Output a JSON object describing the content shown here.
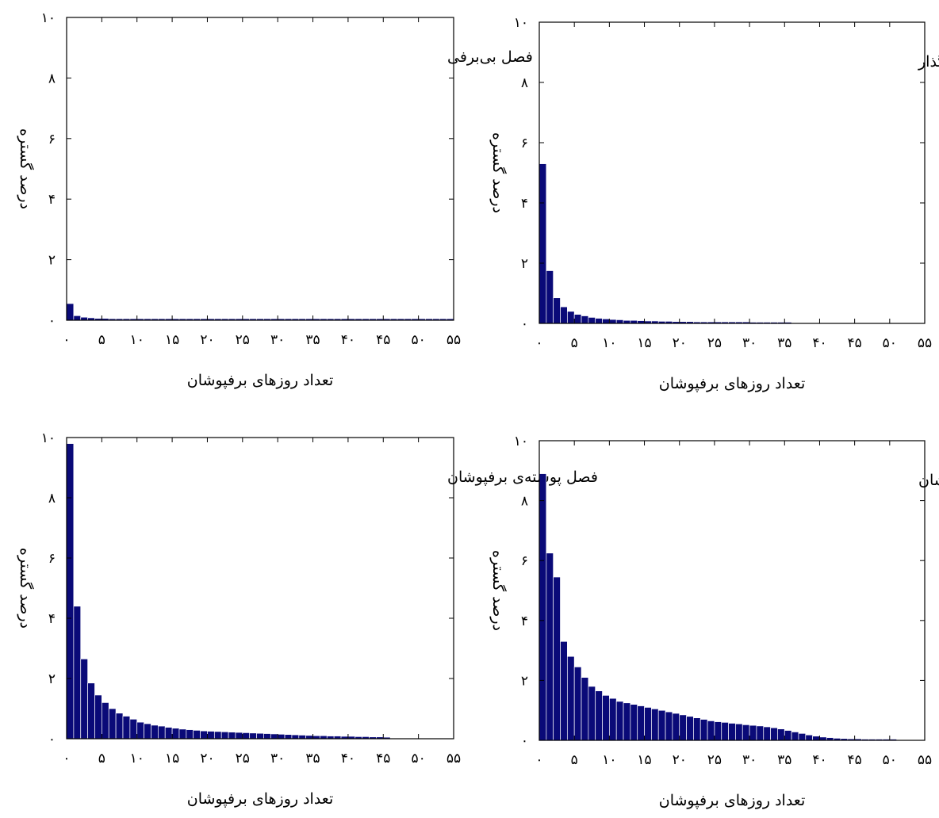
{
  "bar_color": "#0a0a78",
  "chart_data": [
    {
      "type": "bar",
      "title": "فصل بی‌برفی",
      "xlabel": "تعداد روزهای برفپوشان",
      "ylabel": "درصد گستره",
      "xlim": [
        0,
        55
      ],
      "ylim": [
        0,
        10
      ],
      "xticks": [
        0,
        5,
        10,
        15,
        20,
        25,
        30,
        35,
        40,
        45,
        50,
        55
      ],
      "xtick_labels": [
        "۰",
        "۵",
        "۱۰",
        "۱۵",
        "۲۰",
        "۲۵",
        "۳۰",
        "۳۵",
        "۴۰",
        "۴۵",
        "۵۰",
        "۵۵"
      ],
      "yticks": [
        0,
        2,
        4,
        6,
        8,
        10
      ],
      "ytick_labels": [
        "۰",
        "۲",
        "۴",
        "۶",
        "۸",
        "۱۰"
      ],
      "x": [
        1,
        2,
        3,
        4,
        5,
        6,
        7,
        8,
        9,
        10,
        11,
        12,
        13,
        14,
        15,
        16,
        17,
        18,
        19,
        20,
        21,
        22,
        23,
        24,
        25,
        26,
        27,
        28,
        29,
        30,
        31,
        32,
        33,
        34,
        35,
        36,
        37,
        38,
        39,
        40,
        41,
        42,
        43,
        44,
        45,
        46,
        47,
        48,
        49,
        50,
        51,
        52,
        53,
        54,
        55
      ],
      "values": [
        0.55,
        0.15,
        0.1,
        0.08,
        0.06,
        0.06,
        0.05,
        0.05,
        0.05,
        0.05,
        0.05,
        0.05,
        0.05,
        0.05,
        0.05,
        0.05,
        0.05,
        0.05,
        0.05,
        0.05,
        0.05,
        0.05,
        0.05,
        0.05,
        0.05,
        0.05,
        0.05,
        0.05,
        0.05,
        0.05,
        0.05,
        0.05,
        0.05,
        0.05,
        0.05,
        0.05,
        0.05,
        0.05,
        0.05,
        0.05,
        0.05,
        0.05,
        0.05,
        0.05,
        0.05,
        0.05,
        0.05,
        0.05,
        0.05,
        0.05,
        0.05,
        0.05,
        0.05,
        0.05,
        0.05
      ]
    },
    {
      "type": "bar",
      "title": "فصل گذار",
      "xlabel": "تعداد روزهای برفپوشان",
      "ylabel": "درصد گستره",
      "xlim": [
        0,
        55
      ],
      "ylim": [
        0,
        10
      ],
      "xticks": [
        0,
        5,
        10,
        15,
        20,
        25,
        30,
        35,
        40,
        45,
        50,
        55
      ],
      "xtick_labels": [
        "۰",
        "۵",
        "۱۰",
        "۱۵",
        "۲۰",
        "۲۵",
        "۳۰",
        "۳۵",
        "۴۰",
        "۴۵",
        "۵۰",
        "۵۵"
      ],
      "yticks": [
        0,
        2,
        4,
        6,
        8,
        10
      ],
      "ytick_labels": [
        "۰",
        "۲",
        "۴",
        "۶",
        "۸",
        "۱۰"
      ],
      "x": [
        1,
        2,
        3,
        4,
        5,
        6,
        7,
        8,
        9,
        10,
        11,
        12,
        13,
        14,
        15,
        16,
        17,
        18,
        19,
        20,
        21,
        22,
        23,
        24,
        25,
        26,
        27,
        28,
        29,
        30,
        31,
        32,
        33,
        34,
        35,
        36
      ],
      "values": [
        5.3,
        1.75,
        0.85,
        0.55,
        0.4,
        0.3,
        0.25,
        0.2,
        0.17,
        0.15,
        0.13,
        0.12,
        0.1,
        0.1,
        0.09,
        0.08,
        0.08,
        0.07,
        0.07,
        0.06,
        0.06,
        0.06,
        0.05,
        0.05,
        0.05,
        0.05,
        0.05,
        0.05,
        0.05,
        0.05,
        0.04,
        0.04,
        0.04,
        0.04,
        0.04,
        0.04
      ]
    },
    {
      "type": "bar",
      "title": "فصل پوسته‌ی برفپوشان",
      "xlabel": "تعداد روزهای برفپوشان",
      "ylabel": "درصد گستره",
      "xlim": [
        0,
        55
      ],
      "ylim": [
        0,
        10
      ],
      "xticks": [
        0,
        5,
        10,
        15,
        20,
        25,
        30,
        35,
        40,
        45,
        50,
        55
      ],
      "xtick_labels": [
        "۰",
        "۵",
        "۱۰",
        "۱۵",
        "۲۰",
        "۲۵",
        "۳۰",
        "۳۵",
        "۴۰",
        "۴۵",
        "۵۰",
        "۵۵"
      ],
      "yticks": [
        0,
        2,
        4,
        6,
        8,
        10
      ],
      "ytick_labels": [
        "۰",
        "۲",
        "۴",
        "۶",
        "۸",
        "۱۰"
      ],
      "x": [
        1,
        2,
        3,
        4,
        5,
        6,
        7,
        8,
        9,
        10,
        11,
        12,
        13,
        14,
        15,
        16,
        17,
        18,
        19,
        20,
        21,
        22,
        23,
        24,
        25,
        26,
        27,
        28,
        29,
        30,
        31,
        32,
        33,
        34,
        35,
        36,
        37,
        38,
        39,
        40,
        41,
        42,
        43,
        44,
        45,
        46
      ],
      "values": [
        9.8,
        4.4,
        2.65,
        1.85,
        1.45,
        1.2,
        1.0,
        0.85,
        0.75,
        0.65,
        0.55,
        0.5,
        0.45,
        0.42,
        0.38,
        0.35,
        0.32,
        0.3,
        0.28,
        0.26,
        0.25,
        0.24,
        0.23,
        0.22,
        0.21,
        0.2,
        0.19,
        0.18,
        0.17,
        0.16,
        0.15,
        0.14,
        0.13,
        0.12,
        0.11,
        0.1,
        0.1,
        0.09,
        0.09,
        0.08,
        0.08,
        0.07,
        0.07,
        0.06,
        0.06,
        0.05
      ]
    },
    {
      "type": "bar",
      "title": "فصل هسته‌ی برفپوشان",
      "xlabel": "تعداد روزهای برفپوشان",
      "ylabel": "درصد گستره",
      "xlim": [
        0,
        55
      ],
      "ylim": [
        0,
        10
      ],
      "xticks": [
        0,
        5,
        10,
        15,
        20,
        25,
        30,
        35,
        40,
        45,
        50,
        55
      ],
      "xtick_labels": [
        "۰",
        "۵",
        "۱۰",
        "۱۵",
        "۲۰",
        "۲۵",
        "۳۰",
        "۳۵",
        "۴۰",
        "۴۵",
        "۵۰",
        "۵۵"
      ],
      "yticks": [
        0,
        2,
        4,
        6,
        8,
        10
      ],
      "ytick_labels": [
        "۰",
        "۲",
        "۴",
        "۶",
        "۸",
        "۱۰"
      ],
      "x": [
        1,
        2,
        3,
        4,
        5,
        6,
        7,
        8,
        9,
        10,
        11,
        12,
        13,
        14,
        15,
        16,
        17,
        18,
        19,
        20,
        21,
        22,
        23,
        24,
        25,
        26,
        27,
        28,
        29,
        30,
        31,
        32,
        33,
        34,
        35,
        36,
        37,
        38,
        39,
        40,
        41,
        42,
        43,
        44,
        45,
        46,
        47,
        48,
        49,
        50,
        51
      ],
      "values": [
        8.9,
        6.25,
        5.45,
        3.3,
        2.8,
        2.45,
        2.1,
        1.8,
        1.65,
        1.5,
        1.4,
        1.3,
        1.25,
        1.2,
        1.15,
        1.1,
        1.05,
        1.0,
        0.95,
        0.9,
        0.85,
        0.8,
        0.75,
        0.7,
        0.65,
        0.62,
        0.6,
        0.57,
        0.55,
        0.52,
        0.5,
        0.48,
        0.45,
        0.42,
        0.38,
        0.33,
        0.28,
        0.23,
        0.18,
        0.14,
        0.11,
        0.09,
        0.07,
        0.06,
        0.05,
        0.05,
        0.04,
        0.04,
        0.04,
        0.04,
        0.04
      ]
    }
  ]
}
